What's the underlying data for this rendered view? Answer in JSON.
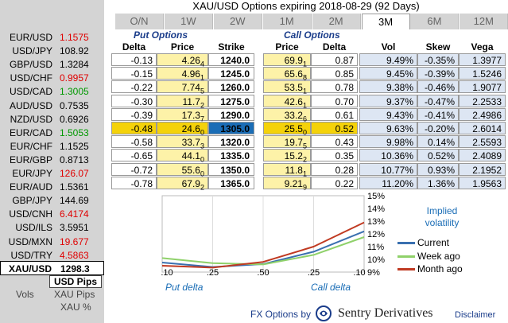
{
  "title": "XAU/USD Options expiring 2018-08-29 (92 Days)",
  "tabs": [
    "O/N",
    "1W",
    "2W",
    "1M",
    "2M",
    "3M",
    "6M",
    "12M"
  ],
  "active_tab": "3M",
  "pairs": [
    {
      "name": "EUR/USD",
      "value": "1.1575",
      "color": "red"
    },
    {
      "name": "USD/JPY",
      "value": "108.92",
      "color": "black"
    },
    {
      "name": "GBP/USD",
      "value": "1.3284",
      "color": "black"
    },
    {
      "name": "USD/CHF",
      "value": "0.9957",
      "color": "red"
    },
    {
      "name": "USD/CAD",
      "value": "1.3005",
      "color": "green"
    },
    {
      "name": "AUD/USD",
      "value": "0.7535",
      "color": "black"
    },
    {
      "name": "NZD/USD",
      "value": "0.6926",
      "color": "black"
    },
    {
      "name": "EUR/CAD",
      "value": "1.5053",
      "color": "green"
    },
    {
      "name": "EUR/CHF",
      "value": "1.1525",
      "color": "black"
    },
    {
      "name": "EUR/GBP",
      "value": "0.8713",
      "color": "black"
    },
    {
      "name": "EUR/JPY",
      "value": "126.07",
      "color": "red"
    },
    {
      "name": "EUR/AUD",
      "value": "1.5361",
      "color": "black"
    },
    {
      "name": "GBP/JPY",
      "value": "144.69",
      "color": "black"
    },
    {
      "name": "USD/CNH",
      "value": "6.4174",
      "color": "red"
    },
    {
      "name": "USD/ILS",
      "value": "3.5951",
      "color": "black"
    },
    {
      "name": "USD/MXN",
      "value": "19.677",
      "color": "red"
    },
    {
      "name": "USD/TRY",
      "value": "4.5863",
      "color": "red"
    }
  ],
  "selected_pair": {
    "name": "XAU/USD",
    "value": "1298.3"
  },
  "vols_label": "Vols",
  "usd_pips_label": "USD Pips",
  "xau_pips_label": "XAU Pips",
  "xau_pct_label": "XAU %",
  "put_options_header": "Put Options",
  "call_options_header": "Call Options",
  "columns": [
    "Delta",
    "Price",
    "Strike",
    "Price",
    "Delta",
    "Vol",
    "Skew",
    "Vega"
  ],
  "rows": [
    {
      "put_delta": "-0.13",
      "put_price": "4.26",
      "put_price_sub": "4",
      "strike": "1240.0",
      "call_price": "69.9",
      "call_price_sub": "1",
      "call_delta": "0.87",
      "vol": "9.49%",
      "skew": "-0.35%",
      "vega": "1.3977"
    },
    {
      "put_delta": "-0.15",
      "put_price": "4.96",
      "put_price_sub": "1",
      "strike": "1245.0",
      "call_price": "65.6",
      "call_price_sub": "8",
      "call_delta": "0.85",
      "vol": "9.45%",
      "skew": "-0.39%",
      "vega": "1.5246"
    },
    {
      "put_delta": "-0.22",
      "put_price": "7.74",
      "put_price_sub": "5",
      "strike": "1260.0",
      "call_price": "53.5",
      "call_price_sub": "1",
      "call_delta": "0.78",
      "vol": "9.38%",
      "skew": "-0.46%",
      "vega": "1.9077"
    },
    {
      "put_delta": "-0.30",
      "put_price": "11.7",
      "put_price_sub": "2",
      "strike": "1275.0",
      "call_price": "42.6",
      "call_price_sub": "1",
      "call_delta": "0.70",
      "vol": "9.37%",
      "skew": "-0.47%",
      "vega": "2.2533"
    },
    {
      "put_delta": "-0.39",
      "put_price": "17.3",
      "put_price_sub": "7",
      "strike": "1290.0",
      "call_price": "33.2",
      "call_price_sub": "6",
      "call_delta": "0.61",
      "vol": "9.43%",
      "skew": "-0.41%",
      "vega": "2.4986"
    },
    {
      "put_delta": "-0.48",
      "put_price": "24.6",
      "put_price_sub": "0",
      "strike": "1305.0",
      "call_price": "25.5",
      "call_price_sub": "0",
      "call_delta": "0.52",
      "vol": "9.63%",
      "skew": "-0.20%",
      "vega": "2.6014",
      "selected": true
    },
    {
      "put_delta": "-0.58",
      "put_price": "33.7",
      "put_price_sub": "3",
      "strike": "1320.0",
      "call_price": "19.7",
      "call_price_sub": "5",
      "call_delta": "0.43",
      "vol": "9.98%",
      "skew": "0.14%",
      "vega": "2.5593"
    },
    {
      "put_delta": "-0.65",
      "put_price": "44.1",
      "put_price_sub": "0",
      "strike": "1335.0",
      "call_price": "15.2",
      "call_price_sub": "2",
      "call_delta": "0.35",
      "vol": "10.36%",
      "skew": "0.52%",
      "vega": "2.4089"
    },
    {
      "put_delta": "-0.72",
      "put_price": "55.6",
      "put_price_sub": "0",
      "strike": "1350.0",
      "call_price": "11.8",
      "call_price_sub": "1",
      "call_delta": "0.28",
      "vol": "10.77%",
      "skew": "0.93%",
      "vega": "2.1952"
    },
    {
      "put_delta": "-0.78",
      "put_price": "67.9",
      "put_price_sub": "2",
      "strike": "1365.0",
      "call_price": "9.21",
      "call_price_sub": "9",
      "call_delta": "0.22",
      "vol": "11.20%",
      "skew": "1.36%",
      "vega": "1.9563"
    }
  ],
  "chart_data": {
    "type": "line",
    "title": "Implied volatility",
    "x_tick_labels": [
      ".10",
      ".25",
      ".50",
      ".25",
      ".10"
    ],
    "x_side_labels": {
      "left": "Put delta",
      "right": "Call delta"
    },
    "y_tick_labels": [
      "15%",
      "14%",
      "13%",
      "12%",
      "11%",
      "10%",
      "9%"
    ],
    "ylim": [
      9,
      15
    ],
    "x": [
      0,
      1,
      2,
      3,
      4
    ],
    "series": [
      {
        "name": "Current",
        "color": "#3a70b0",
        "values": [
          9.75,
          9.4,
          9.63,
          10.6,
          12.2
        ]
      },
      {
        "name": "Week ago",
        "color": "#8fd16a",
        "values": [
          10.1,
          9.7,
          9.6,
          10.35,
          11.75
        ]
      },
      {
        "name": "Month ago",
        "color": "#c03a22",
        "values": [
          9.5,
          9.35,
          9.8,
          11.0,
          12.9
        ]
      }
    ],
    "legend_position": "right"
  },
  "footer": {
    "fx_options": "FX Options by",
    "brand": "Sentry Derivatives",
    "disclaimer": "Disclaimer"
  },
  "colors": {
    "red": "#e00000",
    "green": "#009900",
    "blue": "#1a6db6",
    "yellow_cell": "#fdf2a8",
    "blue_cell": "#dde6f3",
    "selected_row": "#1a6db6",
    "selected_row_yellow": "#f4d20a"
  }
}
